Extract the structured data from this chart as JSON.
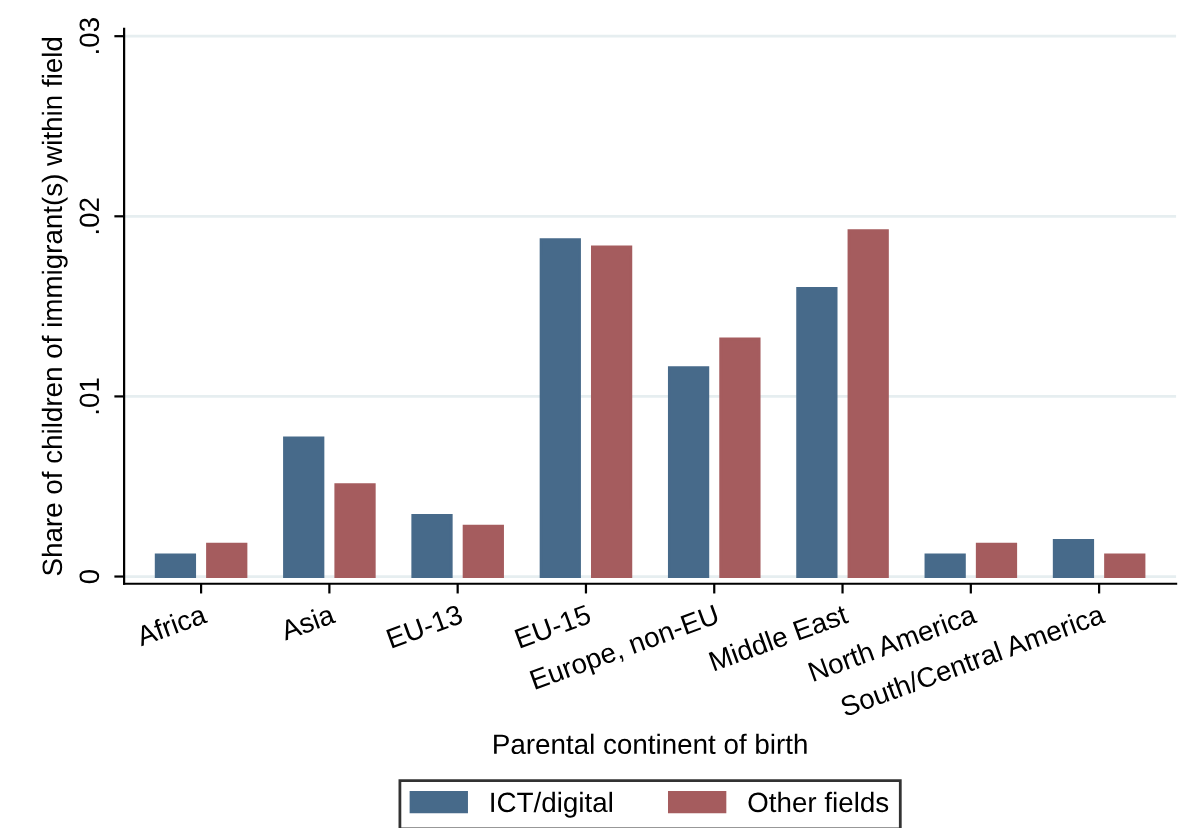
{
  "chart_data": {
    "type": "bar",
    "categories": [
      "Africa",
      "Asia",
      "EU-13",
      "EU-15",
      "Europe, non-EU",
      "Middle East",
      "North America",
      "South/Central America"
    ],
    "series": [
      {
        "name": "ICT/digital",
        "color": "#476a8a",
        "values": [
          0.0012,
          0.0077,
          0.0034,
          0.0187,
          0.0116,
          0.016,
          0.0012,
          0.002
        ]
      },
      {
        "name": "Other fields",
        "color": "#a55c5e",
        "values": [
          0.0018,
          0.0051,
          0.0028,
          0.0183,
          0.0132,
          0.0192,
          0.0018,
          0.0012
        ]
      }
    ],
    "xlabel": "Parental continent of birth",
    "ylabel": "Share of children of immigrant(s) within field",
    "ylim": [
      -0.0004,
      0.0304
    ],
    "yticks": [
      0,
      {
        "value": 0.01,
        "label": ".01"
      },
      {
        "value": 0.02,
        "label": ".02"
      },
      {
        "value": 0.03,
        "label": ".03"
      }
    ],
    "grid": "y",
    "legend": "bottom"
  }
}
